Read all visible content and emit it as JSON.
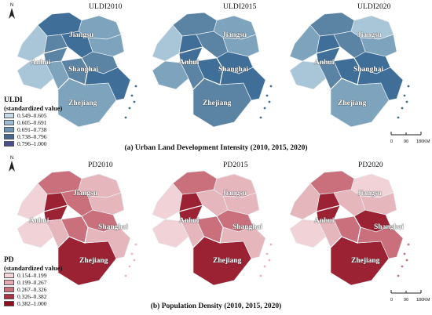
{
  "panel_a": {
    "maps": [
      {
        "title": "ULDI2010",
        "shades": [
          "#3f6f99",
          "#7ea3bd",
          "#a9c6d8",
          "#5b83a3",
          "#3f6f99",
          "#7ea3bd",
          "#5b83a3",
          "#a9c6d8",
          "#7ea3bd",
          "#5b83a3",
          "#7ea3bd",
          "#3f6f99"
        ]
      },
      {
        "title": "ULDI2015",
        "shades": [
          "#5b83a3",
          "#7ea3bd",
          "#a9c6d8",
          "#3f6f99",
          "#5b83a3",
          "#7ea3bd",
          "#3f6f99",
          "#7ea3bd",
          "#5b83a3",
          "#3f6f99",
          "#5b83a3",
          "#3f6f99"
        ]
      },
      {
        "title": "ULDI2020",
        "shades": [
          "#5b83a3",
          "#a9c6d8",
          "#7ea3bd",
          "#3f6f99",
          "#5b83a3",
          "#7ea3bd",
          "#3f6f99",
          "#a9c6d8",
          "#5b83a3",
          "#3f6f99",
          "#7ea3bd",
          "#3f6f99"
        ]
      }
    ],
    "provinces": {
      "jiangsu": "Jiangsu",
      "anhui": "Anhui",
      "shanghai": "Shanghai",
      "zhejiang": "Zhejiang"
    },
    "legend": {
      "title": "ULDI",
      "subtitle": "(standardized value)",
      "items": [
        {
          "label": "0.549–0.605",
          "color": "#c6dbea"
        },
        {
          "label": "0.605–0.691",
          "color": "#9dbbd2"
        },
        {
          "label": "0.691–0.738",
          "color": "#6f93b2"
        },
        {
          "label": "0.738–0.796",
          "color": "#46698d"
        },
        {
          "label": "0.796–1.000",
          "color": "#4a4f8c"
        }
      ]
    },
    "scale": {
      "ticks": [
        "0",
        "90",
        "180KM"
      ]
    },
    "caption": "(a)  Urban Land Development Intensity (2010, 2015, 2020)"
  },
  "panel_b": {
    "maps": [
      {
        "title": "PD2010",
        "shades": [
          "#c9707c",
          "#e6b6bd",
          "#f1d2d6",
          "#9b2233",
          "#c9707c",
          "#e6b6bd",
          "#c9707c",
          "#f1d2d6",
          "#e6b6bd",
          "#c9707c",
          "#9b2233",
          "#e6b6bd"
        ]
      },
      {
        "title": "PD2015",
        "shades": [
          "#c9707c",
          "#e6b6bd",
          "#f1d2d6",
          "#9b2233",
          "#e6b6bd",
          "#e6b6bd",
          "#c9707c",
          "#f1d2d6",
          "#e6b6bd",
          "#c9707c",
          "#9b2233",
          "#e6b6bd"
        ]
      },
      {
        "title": "PD2020",
        "shades": [
          "#c9707c",
          "#f1d2d6",
          "#e6b6bd",
          "#9b2233",
          "#e6b6bd",
          "#e6b6bd",
          "#9b2233",
          "#f1d2d6",
          "#e6b6bd",
          "#c9707c",
          "#9b2233",
          "#c9707c"
        ]
      }
    ],
    "provinces": {
      "jiangsu": "Jiangsu",
      "anhui": "Anhui",
      "shanghai": "Shanghai",
      "zhejiang": "Zhejiang"
    },
    "legend": {
      "title": "PD",
      "subtitle": "(standardized value)",
      "items": [
        {
          "label": "0.154–0.199",
          "color": "#f4d6da"
        },
        {
          "label": "0.199–0.267",
          "color": "#e4aab2"
        },
        {
          "label": "0.267–0.326",
          "color": "#c9707c"
        },
        {
          "label": "0.326–0.382",
          "color": "#a83443"
        },
        {
          "label": "0.382–1.000",
          "color": "#8b0f1e"
        }
      ]
    },
    "scale": {
      "ticks": [
        "0",
        "90",
        "180KM"
      ]
    },
    "caption": "(b)  Population Density (2010, 2015, 2020)"
  },
  "north_label": "N"
}
